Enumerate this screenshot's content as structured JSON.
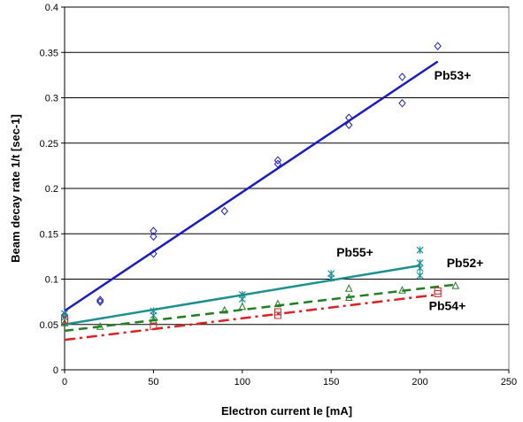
{
  "chart_data": {
    "type": "scatter",
    "title": "",
    "xlabel": "Electron current Ie [mA]",
    "ylabel": "Beam decay rate 1/t [sec-1]",
    "xlim": [
      0,
      250
    ],
    "ylim": [
      0,
      0.4
    ],
    "xticks": [
      0,
      50,
      100,
      150,
      200,
      250
    ],
    "yticks": [
      0,
      0.05,
      0.1,
      0.15,
      0.2,
      0.25,
      0.3,
      0.35,
      0.4
    ],
    "grid": "horizontal",
    "legend": "none",
    "series": [
      {
        "name": "Pb53+",
        "marker": "diamond",
        "color": "#1a1acc",
        "line_style": "solid",
        "points": [
          [
            0,
            0.06
          ],
          [
            20,
            0.075
          ],
          [
            20,
            0.077
          ],
          [
            50,
            0.153
          ],
          [
            50,
            0.147
          ],
          [
            50,
            0.128
          ],
          [
            90,
            0.175
          ],
          [
            120,
            0.231
          ],
          [
            120,
            0.227
          ],
          [
            160,
            0.278
          ],
          [
            160,
            0.27
          ],
          [
            190,
            0.323
          ],
          [
            190,
            0.294
          ],
          [
            210,
            0.357
          ]
        ],
        "fit": [
          [
            0,
            0.065
          ],
          [
            210,
            0.34
          ]
        ]
      },
      {
        "name": "Pb55+",
        "marker": "asterisk",
        "color": "#1a9090",
        "line_style": "solid",
        "points": [
          [
            0,
            0.062
          ],
          [
            0,
            0.058
          ],
          [
            50,
            0.065
          ],
          [
            50,
            0.06
          ],
          [
            100,
            0.083
          ],
          [
            100,
            0.078
          ],
          [
            150,
            0.106
          ],
          [
            150,
            0.101
          ],
          [
            200,
            0.132
          ],
          [
            200,
            0.118
          ],
          [
            200,
            0.112
          ],
          [
            200,
            0.104
          ]
        ],
        "fit": [
          [
            0,
            0.05
          ],
          [
            200,
            0.115
          ]
        ]
      },
      {
        "name": "Pb52+",
        "marker": "triangle",
        "color": "#208020",
        "line_style": "dashed",
        "points": [
          [
            0,
            0.052
          ],
          [
            20,
            0.048
          ],
          [
            50,
            0.055
          ],
          [
            90,
            0.066
          ],
          [
            100,
            0.07
          ],
          [
            120,
            0.073
          ],
          [
            160,
            0.09
          ],
          [
            160,
            0.08
          ],
          [
            190,
            0.088
          ],
          [
            220,
            0.093
          ]
        ],
        "fit": [
          [
            0,
            0.043
          ],
          [
            220,
            0.094
          ]
        ]
      },
      {
        "name": "Pb54+",
        "marker": "square",
        "color": "#e02020",
        "line_style": "dashdot",
        "points": [
          [
            0,
            0.055
          ],
          [
            50,
            0.048
          ],
          [
            120,
            0.064
          ],
          [
            120,
            0.06
          ],
          [
            210,
            0.087
          ],
          [
            210,
            0.084
          ]
        ],
        "fit": [
          [
            0,
            0.033
          ],
          [
            210,
            0.083
          ]
        ]
      }
    ],
    "labels": [
      {
        "text": "Pb53+",
        "x": 208,
        "y": 0.32
      },
      {
        "text": "Pb55+",
        "x": 153,
        "y": 0.125
      },
      {
        "text": "Pb52+",
        "x": 215,
        "y": 0.113
      },
      {
        "text": "Pb54+",
        "x": 205,
        "y": 0.066
      }
    ]
  }
}
